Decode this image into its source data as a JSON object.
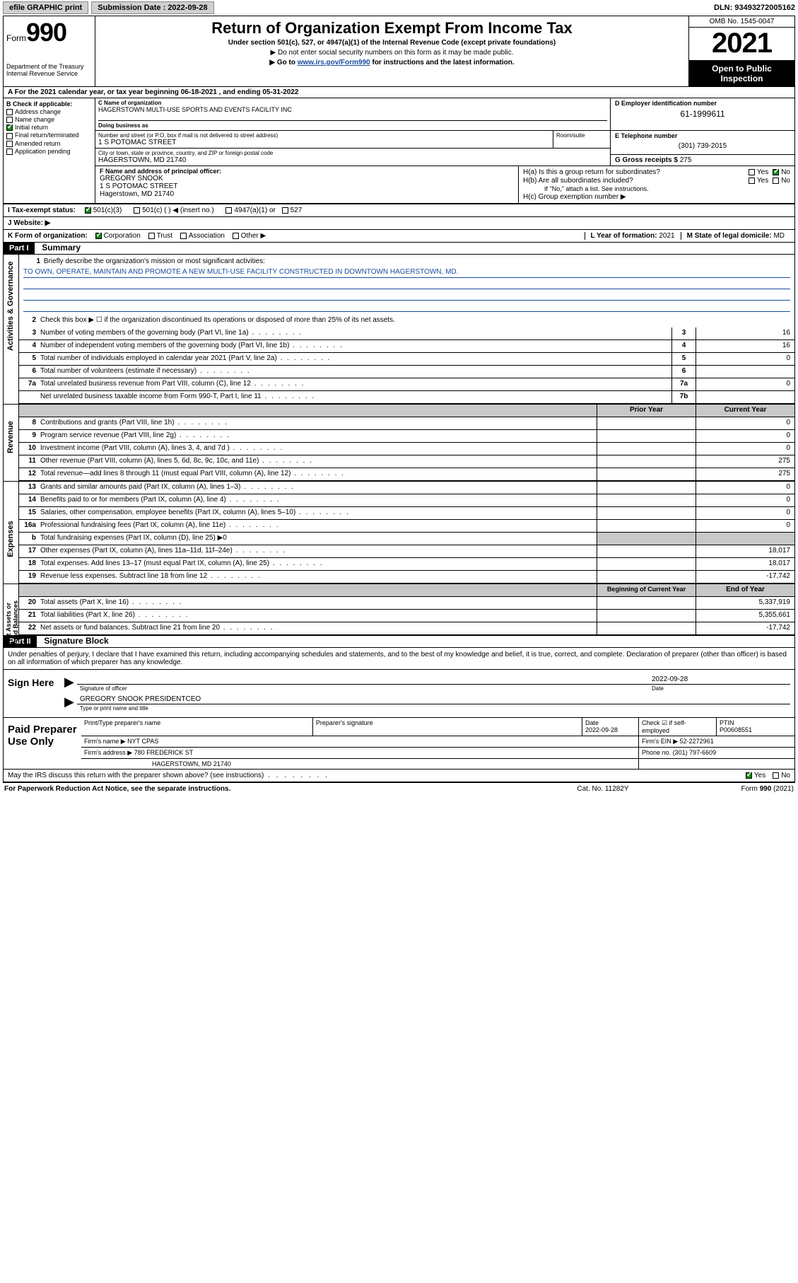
{
  "topbar": {
    "efile_label": "efile GRAPHIC print",
    "submission_label": "Submission Date : 2022-09-28",
    "dln": "DLN: 93493272005162"
  },
  "header": {
    "form_small": "Form",
    "form_big": "990",
    "dept": "Department of the Treasury",
    "irs": "Internal Revenue Service",
    "title": "Return of Organization Exempt From Income Tax",
    "sub": "Under section 501(c), 527, or 4947(a)(1) of the Internal Revenue Code (except private foundations)",
    "note1": "▶ Do not enter social security numbers on this form as it may be made public.",
    "note2_pre": "▶ Go to ",
    "note2_link": "www.irs.gov/Form990",
    "note2_post": " for instructions and the latest information.",
    "omb": "OMB No. 1545-0047",
    "year": "2021",
    "open": "Open to Public Inspection"
  },
  "period": {
    "text_a": "A For the 2021 calendar year, or tax year beginning ",
    "begin": "06-18-2021",
    "text_b": " , and ending ",
    "end": "05-31-2022"
  },
  "boxB": {
    "title": "B Check if applicable:",
    "opts": [
      "Address change",
      "Name change",
      "Initial return",
      "Final return/terminated",
      "Amended return",
      "Application pending"
    ],
    "checked_idx": 2
  },
  "boxC": {
    "name_lbl": "C Name of organization",
    "name": "HAGERSTOWN MULTI-USE SPORTS AND EVENTS FACILITY INC",
    "dba_lbl": "Doing business as",
    "dba": "",
    "addr_lbl": "Number and street (or P.O. box if mail is not delivered to street address)",
    "addr": "1 S POTOMAC STREET",
    "room_lbl": "Room/suite",
    "room": "",
    "city_lbl": "City or town, state or province, country, and ZIP or foreign postal code",
    "city": "HAGERSTOWN, MD  21740"
  },
  "boxD": {
    "lbl": "D Employer identification number",
    "val": "61-1999611"
  },
  "boxE": {
    "lbl": "E Telephone number",
    "val": "(301) 739-2015"
  },
  "boxG": {
    "lbl": "G Gross receipts $",
    "val": "275"
  },
  "boxF": {
    "lbl": "F Name and address of principal officer:",
    "name": "GREGORY SNOOK",
    "addr1": "1 S POTOMAC STREET",
    "addr2": "Hagerstown, MD  21740"
  },
  "boxH": {
    "a": "H(a)  Is this a group return for subordinates?",
    "a_yes": "Yes",
    "a_no": "No",
    "b": "H(b)  Are all subordinates included?",
    "b_yes": "Yes",
    "b_no": "No",
    "note": "If \"No,\" attach a list. See instructions.",
    "c": "H(c)  Group exemption number ▶"
  },
  "rowI": {
    "lbl": "I     Tax-exempt status:",
    "o1": "501(c)(3)",
    "o2": "501(c) (  ) ◀ (insert no.)",
    "o3": "4947(a)(1) or",
    "o4": "527"
  },
  "rowJ": {
    "lbl": "J    Website: ▶",
    "val": ""
  },
  "rowK": {
    "lbl": "K Form of organization:",
    "o1": "Corporation",
    "o2": "Trust",
    "o3": "Association",
    "o4": "Other ▶",
    "l_lbl": "L Year of formation:",
    "l_val": "2021",
    "m_lbl": "M State of legal domicile:",
    "m_val": "MD"
  },
  "partI": {
    "hdr": "Part I",
    "title": "Summary",
    "line1_lbl": "Briefly describe the organization's mission or most significant activities:",
    "line1_val": "TO OWN, OPERATE, MAINTAIN AND PROMOTE A NEW MULTI-USE FACILITY CONSTRUCTED IN DOWNTOWN HAGERSTOWN, MD.",
    "line2": "Check this box ▶ ☐  if the organization discontinued its operations or disposed of more than 25% of its net assets.",
    "lines_ag": [
      {
        "n": "3",
        "t": "Number of voting members of the governing body (Part VI, line 1a)",
        "box": "3",
        "v": "16"
      },
      {
        "n": "4",
        "t": "Number of independent voting members of the governing body (Part VI, line 1b)",
        "box": "4",
        "v": "16"
      },
      {
        "n": "5",
        "t": "Total number of individuals employed in calendar year 2021 (Part V, line 2a)",
        "box": "5",
        "v": "0"
      },
      {
        "n": "6",
        "t": "Total number of volunteers (estimate if necessary)",
        "box": "6",
        "v": ""
      },
      {
        "n": "7a",
        "t": "Total unrelated business revenue from Part VIII, column (C), line 12",
        "box": "7a",
        "v": "0"
      },
      {
        "n": "",
        "t": "Net unrelated business taxable income from Form 990-T, Part I, line 11",
        "box": "7b",
        "v": ""
      }
    ],
    "col_prior": "Prior Year",
    "col_curr": "Current Year",
    "rev": [
      {
        "n": "8",
        "t": "Contributions and grants (Part VIII, line 1h)",
        "p": "",
        "c": "0"
      },
      {
        "n": "9",
        "t": "Program service revenue (Part VIII, line 2g)",
        "p": "",
        "c": "0"
      },
      {
        "n": "10",
        "t": "Investment income (Part VIII, column (A), lines 3, 4, and 7d )",
        "p": "",
        "c": "0"
      },
      {
        "n": "11",
        "t": "Other revenue (Part VIII, column (A), lines 5, 6d, 8c, 9c, 10c, and 11e)",
        "p": "",
        "c": "275"
      },
      {
        "n": "12",
        "t": "Total revenue—add lines 8 through 11 (must equal Part VIII, column (A), line 12)",
        "p": "",
        "c": "275"
      }
    ],
    "exp": [
      {
        "n": "13",
        "t": "Grants and similar amounts paid (Part IX, column (A), lines 1–3)",
        "p": "",
        "c": "0"
      },
      {
        "n": "14",
        "t": "Benefits paid to or for members (Part IX, column (A), line 4)",
        "p": "",
        "c": "0"
      },
      {
        "n": "15",
        "t": "Salaries, other compensation, employee benefits (Part IX, column (A), lines 5–10)",
        "p": "",
        "c": "0"
      },
      {
        "n": "16a",
        "t": "Professional fundraising fees (Part IX, column (A), line 11e)",
        "p": "",
        "c": "0"
      },
      {
        "n": "b",
        "t": "Total fundraising expenses (Part IX, column (D), line 25) ▶0",
        "p": "grey",
        "c": "grey"
      },
      {
        "n": "17",
        "t": "Other expenses (Part IX, column (A), lines 11a–11d, 11f–24e)",
        "p": "",
        "c": "18,017"
      },
      {
        "n": "18",
        "t": "Total expenses. Add lines 13–17 (must equal Part IX, column (A), line 25)",
        "p": "",
        "c": "18,017"
      },
      {
        "n": "19",
        "t": "Revenue less expenses. Subtract line 18 from line 12",
        "p": "",
        "c": "-17,742"
      }
    ],
    "col_begin": "Beginning of Current Year",
    "col_end": "End of Year",
    "na": [
      {
        "n": "20",
        "t": "Total assets (Part X, line 16)",
        "p": "",
        "c": "5,337,919"
      },
      {
        "n": "21",
        "t": "Total liabilities (Part X, line 26)",
        "p": "",
        "c": "5,355,661"
      },
      {
        "n": "22",
        "t": "Net assets or fund balances. Subtract line 21 from line 20",
        "p": "",
        "c": "-17,742"
      }
    ]
  },
  "partII": {
    "hdr": "Part II",
    "title": "Signature Block",
    "intro": "Under penalties of perjury, I declare that I have examined this return, including accompanying schedules and statements, and to the best of my knowledge and belief, it is true, correct, and complete. Declaration of preparer (other than officer) is based on all information of which preparer has any knowledge."
  },
  "sign": {
    "lbl": "Sign Here",
    "sig_lbl": "Signature of officer",
    "date_val": "2022-09-28",
    "date_lbl": "Date",
    "name_val": "GREGORY SNOOK  PRESIDENTCEO",
    "name_lbl": "Type or print name and title"
  },
  "paid": {
    "lbl": "Paid Preparer Use Only",
    "r1": {
      "c1_lbl": "Print/Type preparer's name",
      "c1": "",
      "c2_lbl": "Preparer's signature",
      "c2": "",
      "c3_lbl": "Date",
      "c3": "2022-09-28",
      "c4_lbl": "Check ☑ if self-employed",
      "c5_lbl": "PTIN",
      "c5": "P00608551"
    },
    "r2": {
      "lbl": "Firm's name    ▶",
      "val": "NYT CPAS",
      "ein_lbl": "Firm's EIN ▶",
      "ein": "52-2272961"
    },
    "r3": {
      "lbl": "Firm's address ▶",
      "val": "780 FREDERICK ST",
      "ph_lbl": "Phone no.",
      "ph": "(301) 797-6609"
    },
    "r4": {
      "val": "HAGERSTOWN, MD  21740"
    }
  },
  "discuss": {
    "q": "May the IRS discuss this return with the preparer shown above? (see instructions)",
    "yes": "Yes",
    "no": "No"
  },
  "footer": {
    "left": "For Paperwork Reduction Act Notice, see the separate instructions.",
    "mid": "Cat. No. 11282Y",
    "right": "Form 990 (2021)"
  }
}
